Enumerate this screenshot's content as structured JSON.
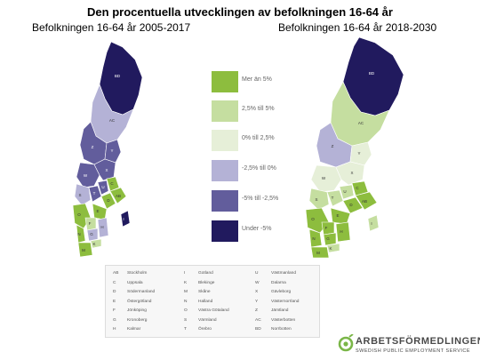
{
  "title": "Den procentuella utvecklingen av befolkningen 16-64 år",
  "subtitle_left": "Befolkningen 16-64 år 2005-2017",
  "subtitle_right": "Befolkningen 16-64 år 2018-2030",
  "legend": [
    {
      "label": "Mer än 5%",
      "color": "#8dbd3e"
    },
    {
      "label": "2,5% till 5%",
      "color": "#c5dea0"
    },
    {
      "label": "0% till 2,5%",
      "color": "#e6efd8"
    },
    {
      "label": "-2,5% till 0%",
      "color": "#b4b2d6"
    },
    {
      "label": "-5% till -2,5%",
      "color": "#625d9c"
    },
    {
      "label": "Under -5%",
      "color": "#211a5e"
    }
  ],
  "map_left_labels": [
    "BD",
    "AC",
    "Z",
    "Y",
    "X",
    "W",
    "S",
    "T",
    "U",
    "C",
    "AB",
    "D",
    "E",
    "O",
    "F",
    "H",
    "G",
    "N",
    "K",
    "M",
    "I"
  ],
  "map_right_labels": [
    "BD",
    "AC",
    "Z",
    "Y",
    "X",
    "W",
    "S",
    "T",
    "U",
    "C",
    "AB",
    "D",
    "E",
    "O",
    "F",
    "H",
    "G",
    "N",
    "K",
    "M",
    "I"
  ],
  "county_table": [
    [
      {
        "code": "AB",
        "name": "Stockholm"
      },
      {
        "code": "I",
        "name": "Gotland"
      },
      {
        "code": "U",
        "name": "Västmanland"
      }
    ],
    [
      {
        "code": "C",
        "name": "Uppsala"
      },
      {
        "code": "K",
        "name": "Blekinge"
      },
      {
        "code": "W",
        "name": "Dalarna"
      }
    ],
    [
      {
        "code": "D",
        "name": "Södermanland"
      },
      {
        "code": "M",
        "name": "Skåne"
      },
      {
        "code": "X",
        "name": "Gävleborg"
      }
    ],
    [
      {
        "code": "E",
        "name": "Östergötland"
      },
      {
        "code": "N",
        "name": "Halland"
      },
      {
        "code": "Y",
        "name": "Västernorrland"
      }
    ],
    [
      {
        "code": "F",
        "name": "Jönköping"
      },
      {
        "code": "O",
        "name": "Västra Götaland"
      },
      {
        "code": "Z",
        "name": "Jämtland"
      }
    ],
    [
      {
        "code": "G",
        "name": "Kronoberg"
      },
      {
        "code": "S",
        "name": "Värmland"
      },
      {
        "code": "AC",
        "name": "Västerbotten"
      }
    ],
    [
      {
        "code": "H",
        "name": "Kalmar"
      },
      {
        "code": "T",
        "name": "Örebro"
      },
      {
        "code": "BD",
        "name": "Norrbotten"
      }
    ]
  ],
  "logo": {
    "name": "ARBETSFÖRMEDLINGEN",
    "tagline": "SWEDISH PUBLIC EMPLOYMENT SERVICE"
  },
  "colors": {
    "dark": "#211a5e",
    "mid_purple": "#625d9c",
    "light_purple": "#b4b2d6",
    "pale_green": "#e6efd8",
    "light_green": "#c5dea0",
    "green": "#8dbd3e",
    "logo_green": "#7ab648"
  }
}
